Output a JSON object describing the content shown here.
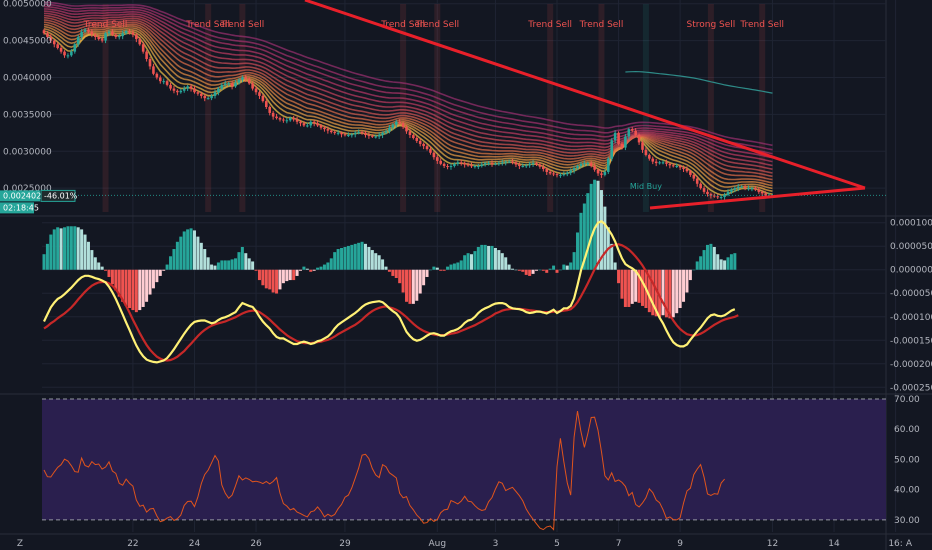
{
  "colors": {
    "background": "#131722",
    "grid": "#1f2433",
    "up": "#26a69a",
    "down": "#ef5350",
    "trendline": "#e8202a",
    "macd_line": "#fff176",
    "signal_line": "#c62828",
    "rsi_line": "#e0541c",
    "rsi_band": "#2a1f4e",
    "long_ma": "#2e8b88"
  },
  "time_axis": [
    "22",
    "24",
    "26",
    "29",
    "Aug",
    "3",
    "5",
    "7",
    "9",
    "12",
    "14",
    "16:"
  ],
  "chart_data": [
    {
      "type": "candlestick",
      "title": "",
      "ylim": [
        0.00215,
        0.00505
      ],
      "y_ticks": [
        "0.0050000",
        "0.0045000",
        "0.0040000",
        "0.0035000",
        "0.0030000",
        "0.0025000"
      ],
      "current_price": "0.0024023",
      "change": "-46.01%",
      "countdown": "02:18:45",
      "annotations": [
        {
          "label": "Trend Sell",
          "idx": 18
        },
        {
          "label": "Trend Sell",
          "idx": 48
        },
        {
          "label": "Trend Sell",
          "idx": 58
        },
        {
          "label": "Trend Sell",
          "idx": 105
        },
        {
          "label": "Trend Sell",
          "idx": 115
        },
        {
          "label": "Trend Sell",
          "idx": 148
        },
        {
          "label": "Trend Sell",
          "idx": 163
        },
        {
          "label": "Strong Sell",
          "idx": 195
        },
        {
          "label": "Trend Sell",
          "idx": 210
        }
      ],
      "buy_annotation": {
        "label": "Mid Buy",
        "idx": 176
      },
      "close": [
        0.0046,
        0.00455,
        0.0045,
        0.00445,
        0.0044,
        0.00435,
        0.0043,
        0.0043,
        0.00435,
        0.00445,
        0.00455,
        0.00462,
        0.00465,
        0.00462,
        0.00458,
        0.00455,
        0.00452,
        0.0045,
        0.0046,
        0.00462,
        0.00458,
        0.00455,
        0.00456,
        0.0046,
        0.00463,
        0.00461,
        0.00458,
        0.00452,
        0.00445,
        0.00435,
        0.00425,
        0.00415,
        0.00405,
        0.004,
        0.00395,
        0.00395,
        0.0039,
        0.00385,
        0.00382,
        0.0038,
        0.00382,
        0.00385,
        0.00388,
        0.00385,
        0.0038,
        0.00378,
        0.00375,
        0.00372,
        0.00372,
        0.00375,
        0.0038,
        0.00385,
        0.0039,
        0.00392,
        0.00392,
        0.00388,
        0.00393,
        0.00397,
        0.004,
        0.00398,
        0.00392,
        0.00385,
        0.0038,
        0.00375,
        0.00368,
        0.0036,
        0.00352,
        0.00347,
        0.00345,
        0.00343,
        0.00342,
        0.00342,
        0.00345,
        0.00343,
        0.0034,
        0.00338,
        0.00335,
        0.00335,
        0.0034,
        0.00338,
        0.00335,
        0.00332,
        0.0033,
        0.00328,
        0.00326,
        0.00325,
        0.00325,
        0.00323,
        0.00322,
        0.00322,
        0.00323,
        0.00325,
        0.00326,
        0.00325,
        0.00322,
        0.00321,
        0.0032,
        0.0032,
        0.00322,
        0.00325,
        0.00327,
        0.00332,
        0.00336,
        0.0034,
        0.00338,
        0.00333,
        0.00327,
        0.00322,
        0.00318,
        0.00314,
        0.0031,
        0.00307,
        0.00303,
        0.00298,
        0.00292,
        0.00287,
        0.00283,
        0.0028,
        0.00279,
        0.0028,
        0.00283,
        0.00285,
        0.00284,
        0.00282,
        0.00281,
        0.0028,
        0.0028,
        0.0028,
        0.00282,
        0.00284,
        0.00284,
        0.00283,
        0.00283,
        0.00284,
        0.00285,
        0.00286,
        0.00286,
        0.00285,
        0.00282,
        0.0028,
        0.0028,
        0.00281,
        0.00283,
        0.00284,
        0.00282,
        0.00279,
        0.00276,
        0.00272,
        0.0027,
        0.00269,
        0.00268,
        0.00268,
        0.00269,
        0.00271,
        0.00274,
        0.00277,
        0.0028,
        0.00283,
        0.00284,
        0.00284,
        0.0028,
        0.00275,
        0.0027,
        0.00268,
        0.00272,
        0.0029,
        0.00315,
        0.00325,
        0.0031,
        0.00305,
        0.0032,
        0.0033,
        0.00328,
        0.00322,
        0.00312,
        0.00302,
        0.00295,
        0.0029,
        0.00286,
        0.00284,
        0.00285,
        0.00285,
        0.00283,
        0.00281,
        0.0028,
        0.0028,
        0.00278,
        0.00276,
        0.00273,
        0.00268,
        0.00263,
        0.00256,
        0.0025,
        0.00245,
        0.00242,
        0.0024,
        0.00239,
        0.00238,
        0.00238,
        0.00241,
        0.00245,
        0.00248,
        0.0025,
        0.00252,
        0.00252,
        0.0025,
        0.0025,
        0.0025,
        0.00248,
        0.00245,
        0.00243,
        0.0024,
        0.0024,
        0.0024
      ]
    },
    {
      "type": "bar+line",
      "title": "",
      "ylim": [
        -0.00026,
        0.00011
      ],
      "y_ticks": [
        "0.0001000",
        "0.0000500",
        "0.0000000",
        "-0.0000500",
        "-0.0001000",
        "-0.0001500",
        "-0.0002000",
        "-0.0002500"
      ],
      "series": [
        {
          "values": [
            -0.00011,
            -9.5e-05,
            -8e-05,
            -7e-05,
            -6.2e-05,
            -5.8e-05,
            -5.2e-05,
            -4.5e-05,
            -3.8e-05,
            -3e-05,
            -2.2e-05,
            -1.6e-05,
            -1.3e-05,
            -1.3e-05,
            -1.5e-05,
            -1.8e-05,
            -2e-05,
            -2.3e-05,
            -2.7e-05,
            -3.6e-05,
            -4.8e-05,
            -6.2e-05,
            -7.8e-05,
            -9.5e-05,
            -0.000112,
            -0.000128,
            -0.000145,
            -0.000161,
            -0.000174,
            -0.000184,
            -0.000191,
            -0.000194,
            -0.000196,
            -0.000197,
            -0.000195,
            -0.000193,
            -0.000188,
            -0.000179,
            -0.000169,
            -0.000158,
            -0.000147,
            -0.000136,
            -0.000126,
            -0.000117,
            -0.000111,
            -0.000109,
            -0.000108,
            -0.000108,
            -0.000111,
            -0.000114,
            -0.000112,
            -0.000107,
            -0.000103,
            -0.000101,
            -9.8e-05,
            -9.4e-05,
            -9e-05,
            -8e-05,
            -7.1e-05,
            -7.4e-05,
            -7.7e-05,
            -7.9e-05,
            -8.8e-05,
            -0.0001,
            -0.00011,
            -0.000118,
            -0.000125,
            -0.000135,
            -0.000143,
            -0.000146,
            -0.000146,
            -0.00015,
            -0.000154,
            -0.000158,
            -0.000158,
            -0.000155,
            -0.000153,
            -0.000155,
            -0.000158,
            -0.000156,
            -0.000152,
            -0.00015,
            -0.000146,
            -0.000142,
            -0.000135,
            -0.000125,
            -0.000117,
            -0.000112,
            -0.000107,
            -0.000102,
            -9.7e-05,
            -9.2e-05,
            -8.6e-05,
            -7.9e-05,
            -7.4e-05,
            -7.1e-05,
            -6.9e-05,
            -6.8e-05,
            -6.7e-05,
            -6.9e-05,
            -7.5e-05,
            -8.2e-05,
            -8.8e-05,
            -9.3e-05,
            -0.000102,
            -0.000117,
            -0.000132,
            -0.000141,
            -0.000148,
            -0.000151,
            -0.000149,
            -0.000145,
            -0.00014,
            -0.000136,
            -0.000135,
            -0.000137,
            -0.00014,
            -0.00014,
            -0.000135,
            -0.000131,
            -0.000129,
            -0.000126,
            -0.000121,
            -0.000113,
            -0.000108,
            -0.000106,
            -0.0001,
            -9.2e-05,
            -8.6e-05,
            -8.2e-05,
            -7.9e-05,
            -7.5e-05,
            -7.2e-05,
            -7.1e-05,
            -7.1e-05,
            -7.3e-05,
            -7.9e-05,
            -8.2e-05,
            -8.3e-05,
            -8.4e-05,
            -8.6e-05,
            -9e-05,
            -9.2e-05,
            -9.1e-05,
            -8.9e-05,
            -8.9e-05,
            -9.1e-05,
            -9.3e-05,
            -8.9e-05,
            -8.5e-05,
            -9.2e-05,
            -8.8e-05,
            -8.2e-05,
            -8.2e-05,
            -7.7e-05,
            -6.1e-05,
            -3.3e-05,
            -2e-06,
            2.1e-05,
            4.5e-05,
            6.9e-05,
            8.8e-05,
            0.0001,
            0.000103,
            9.7e-05,
            8.6e-05,
            7.5e-05,
            6e-05,
            4.1e-05,
            2.4e-05,
            1.2e-05,
            7e-06,
            3e-06,
            -3e-06,
            -1.3e-05,
            -2.6e-05,
            -4e-05,
            -5.6e-05,
            -7.2e-05,
            -8.7e-05,
            -0.000102,
            -0.000114,
            -0.000129,
            -0.000143,
            -0.000154,
            -0.00016,
            -0.000163,
            -0.000163,
            -0.000159,
            -0.000149,
            -0.00014,
            -0.000131,
            -0.000123,
            -0.000113,
            -0.000103,
            -9.7e-05,
            -9.5e-05,
            -9.8e-05,
            -9.9e-05,
            -9.7e-05,
            -9.2e-05,
            -8.7e-05,
            -8.4e-05
          ]
        },
        {
          "values": [
            -0.000125,
            -0.00012,
            -0.000114,
            -0.000109,
            -0.000103,
            -9.8e-05,
            -9.3e-05,
            -8.7e-05,
            -8e-05,
            -7.2e-05,
            -6.3e-05,
            -5.5e-05,
            -4.7e-05,
            -4e-05,
            -3.4e-05,
            -3e-05,
            -2.7e-05,
            -2.6e-05,
            -2.6e-05,
            -2.9e-05,
            -3.4e-05,
            -4.2e-05,
            -5.2e-05,
            -6.4e-05,
            -7.7e-05,
            -9.1e-05,
            -0.000106,
            -0.00012,
            -0.000135,
            -0.000148,
            -0.00016,
            -0.00017,
            -0.000178,
            -0.000185,
            -0.000189,
            -0.000192,
            -0.000193,
            -0.000192,
            -0.000189,
            -0.000185,
            -0.000179,
            -0.000173,
            -0.000165,
            -0.000157,
            -0.000149,
            -0.000141,
            -0.000134,
            -0.000128,
            -0.000123,
            -0.000119,
            -0.000116,
            -0.000114,
            -0.000112,
            -0.00011,
            -0.000107,
            -0.000104,
            -0.000101,
            -9.7e-05,
            -9.3e-05,
            -9e-05,
            -8.8e-05,
            -8.7e-05,
            -8.7e-05,
            -9e-05,
            -9.5e-05,
            -0.0001,
            -0.000106,
            -0.000113,
            -0.00012,
            -0.000127,
            -0.000133,
            -0.000139,
            -0.000144,
            -0.000148,
            -0.000152,
            -0.000154,
            -0.000156,
            -0.000156,
            -0.000156,
            -0.000155,
            -0.000154,
            -0.000153,
            -0.000151,
            -0.000149,
            -0.000146,
            -0.000142,
            -0.000137,
            -0.000133,
            -0.000129,
            -0.000125,
            -0.000121,
            -0.000117,
            -0.000112,
            -0.000106,
            -9.9e-05,
            -9.3e-05,
            -8.8e-05,
            -8.4e-05,
            -8.1e-05,
            -7.9e-05,
            -7.8e-05,
            -8e-05,
            -8.2e-05,
            -8.5e-05,
            -8.9e-05,
            -9.5e-05,
            -0.000101,
            -0.000108,
            -0.000115,
            -0.000121,
            -0.000126,
            -0.00013,
            -0.000133,
            -0.000136,
            -0.000138,
            -0.000139,
            -0.000139,
            -0.000139,
            -0.000138,
            -0.000136,
            -0.000135,
            -0.000133,
            -0.00013,
            -0.000127,
            -0.000124,
            -0.000121,
            -0.000118,
            -0.000114,
            -0.00011,
            -0.000106,
            -0.000102,
            -9.8e-05,
            -9.3e-05,
            -9e-05,
            -8.7e-05,
            -8.5e-05,
            -8.4e-05,
            -8.3e-05,
            -8.3e-05,
            -8.3e-05,
            -8.4e-05,
            -8.5e-05,
            -8.6e-05,
            -8.7e-05,
            -8.8e-05,
            -8.9e-05,
            -9e-05,
            -9e-05,
            -9e-05,
            -8.9e-05,
            -8.9e-05,
            -8.8e-05,
            -8.7e-05,
            -8.6e-05,
            -8.4e-05,
            -7.8e-05,
            -6.9e-05,
            -5.7e-05,
            -4.3e-05,
            -2.9e-05,
            -1.4e-05,
            1e-06,
            1.4e-05,
            2.6e-05,
            3.6e-05,
            4.5e-05,
            5e-05,
            5.3e-05,
            5.4e-05,
            5.2e-05,
            4.8e-05,
            4.3e-05,
            3.6e-05,
            2.8e-05,
            1.9e-05,
            9e-06,
            -3e-06,
            -1.5e-05,
            -2.8e-05,
            -4.2e-05,
            -5.6e-05,
            -7e-05,
            -8.3e-05,
            -9.6e-05,
            -0.000108,
            -0.000118,
            -0.000126,
            -0.000132,
            -0.000137,
            -0.000139,
            -0.00014,
            -0.000139,
            -0.000136,
            -0.000132,
            -0.000127,
            -0.000122,
            -0.000117,
            -0.000113,
            -0.000109,
            -0.000106,
            -0.000104,
            -0.000102,
            -0.0001,
            -9.7e-05
          ]
        }
      ]
    },
    {
      "type": "line",
      "title": "",
      "ylim": [
        26,
        71
      ],
      "y_ticks": [
        "70.00",
        "60.00",
        "50.00",
        "40.00",
        "30.00"
      ],
      "bands": [
        30,
        70
      ],
      "values": [
        46.5,
        44.3,
        44.2,
        45.9,
        47.4,
        48.3,
        50.1,
        49.5,
        47.9,
        46.0,
        45.8,
        50.5,
        48.0,
        47.5,
        49.3,
        48.3,
        48.5,
        46.8,
        47.5,
        49.2,
        46.2,
        45.4,
        42.1,
        41.5,
        43.5,
        42.1,
        41.2,
        36.6,
        34.5,
        34.9,
        32.6,
        33.6,
        33.8,
        31.3,
        29.4,
        29.8,
        30.6,
        31.1,
        29.8,
        30.4,
        31.6,
        34.8,
        36.1,
        36.2,
        34.4,
        37.6,
        42.0,
        45.0,
        46.5,
        48.9,
        51.3,
        49.5,
        41.6,
        38.8,
        37.2,
        38.2,
        41.3,
        44.6,
        43.2,
        43.9,
        43.4,
        42.6,
        42.8,
        42.5,
        42.0,
        42.7,
        41.9,
        42.7,
        44.0,
        38.8,
        35.4,
        34.6,
        33.3,
        33.8,
        32.6,
        32.1,
        31.5,
        31.0,
        32.7,
        33.0,
        34.3,
        32.9,
        31.0,
        31.9,
        31.2,
        31.8,
        33.7,
        35.1,
        37.5,
        38.2,
        40.6,
        43.8,
        47.1,
        51.4,
        51.7,
        50.3,
        47.0,
        44.9,
        44.0,
        48.3,
        47.6,
        45.6,
        44.8,
        43.9,
        38.8,
        37.3,
        37.7,
        34.8,
        33.3,
        31.6,
        30.5,
        28.9,
        29.1,
        30.4,
        29.5,
        30.1,
        32.4,
        33.3,
        33.5,
        36.4,
        35.9,
        35.3,
        36.2,
        37.8,
        36.2,
        36.0,
        34.7,
        33.7,
        33.1,
        33.4,
        36.0,
        37.4,
        40.2,
        42.6,
        42.1,
        39.7,
        40.3,
        40.8,
        39.4,
        38.0,
        36.3,
        33.6,
        31.8,
        30.2,
        28.7,
        27.3,
        26.8,
        27.7,
        28.0,
        26.8,
        47.6,
        57.0,
        49.3,
        42.2,
        38.2,
        57.4,
        66.0,
        59.3,
        54.0,
        58.5,
        63.9,
        64.0,
        59.7,
        52.5,
        44.6,
        43.2,
        45.6,
        42.7,
        43.2,
        42.4,
        41.1,
        38.0,
        39.1,
        35.1,
        34.3,
        35.6,
        37.3,
        40.3,
        39.0,
        36.6,
        35.7,
        33.4,
        30.5,
        31.0,
        30.1,
        30.0,
        30.7,
        35.5,
        39.6,
        40.5,
        45.0,
        46.8,
        48.3,
        44.1,
        38.6,
        38.1,
        38.7,
        38.5,
        42.2,
        43.5
      ]
    }
  ],
  "corner_tz": "Z",
  "corner_auto": "A"
}
